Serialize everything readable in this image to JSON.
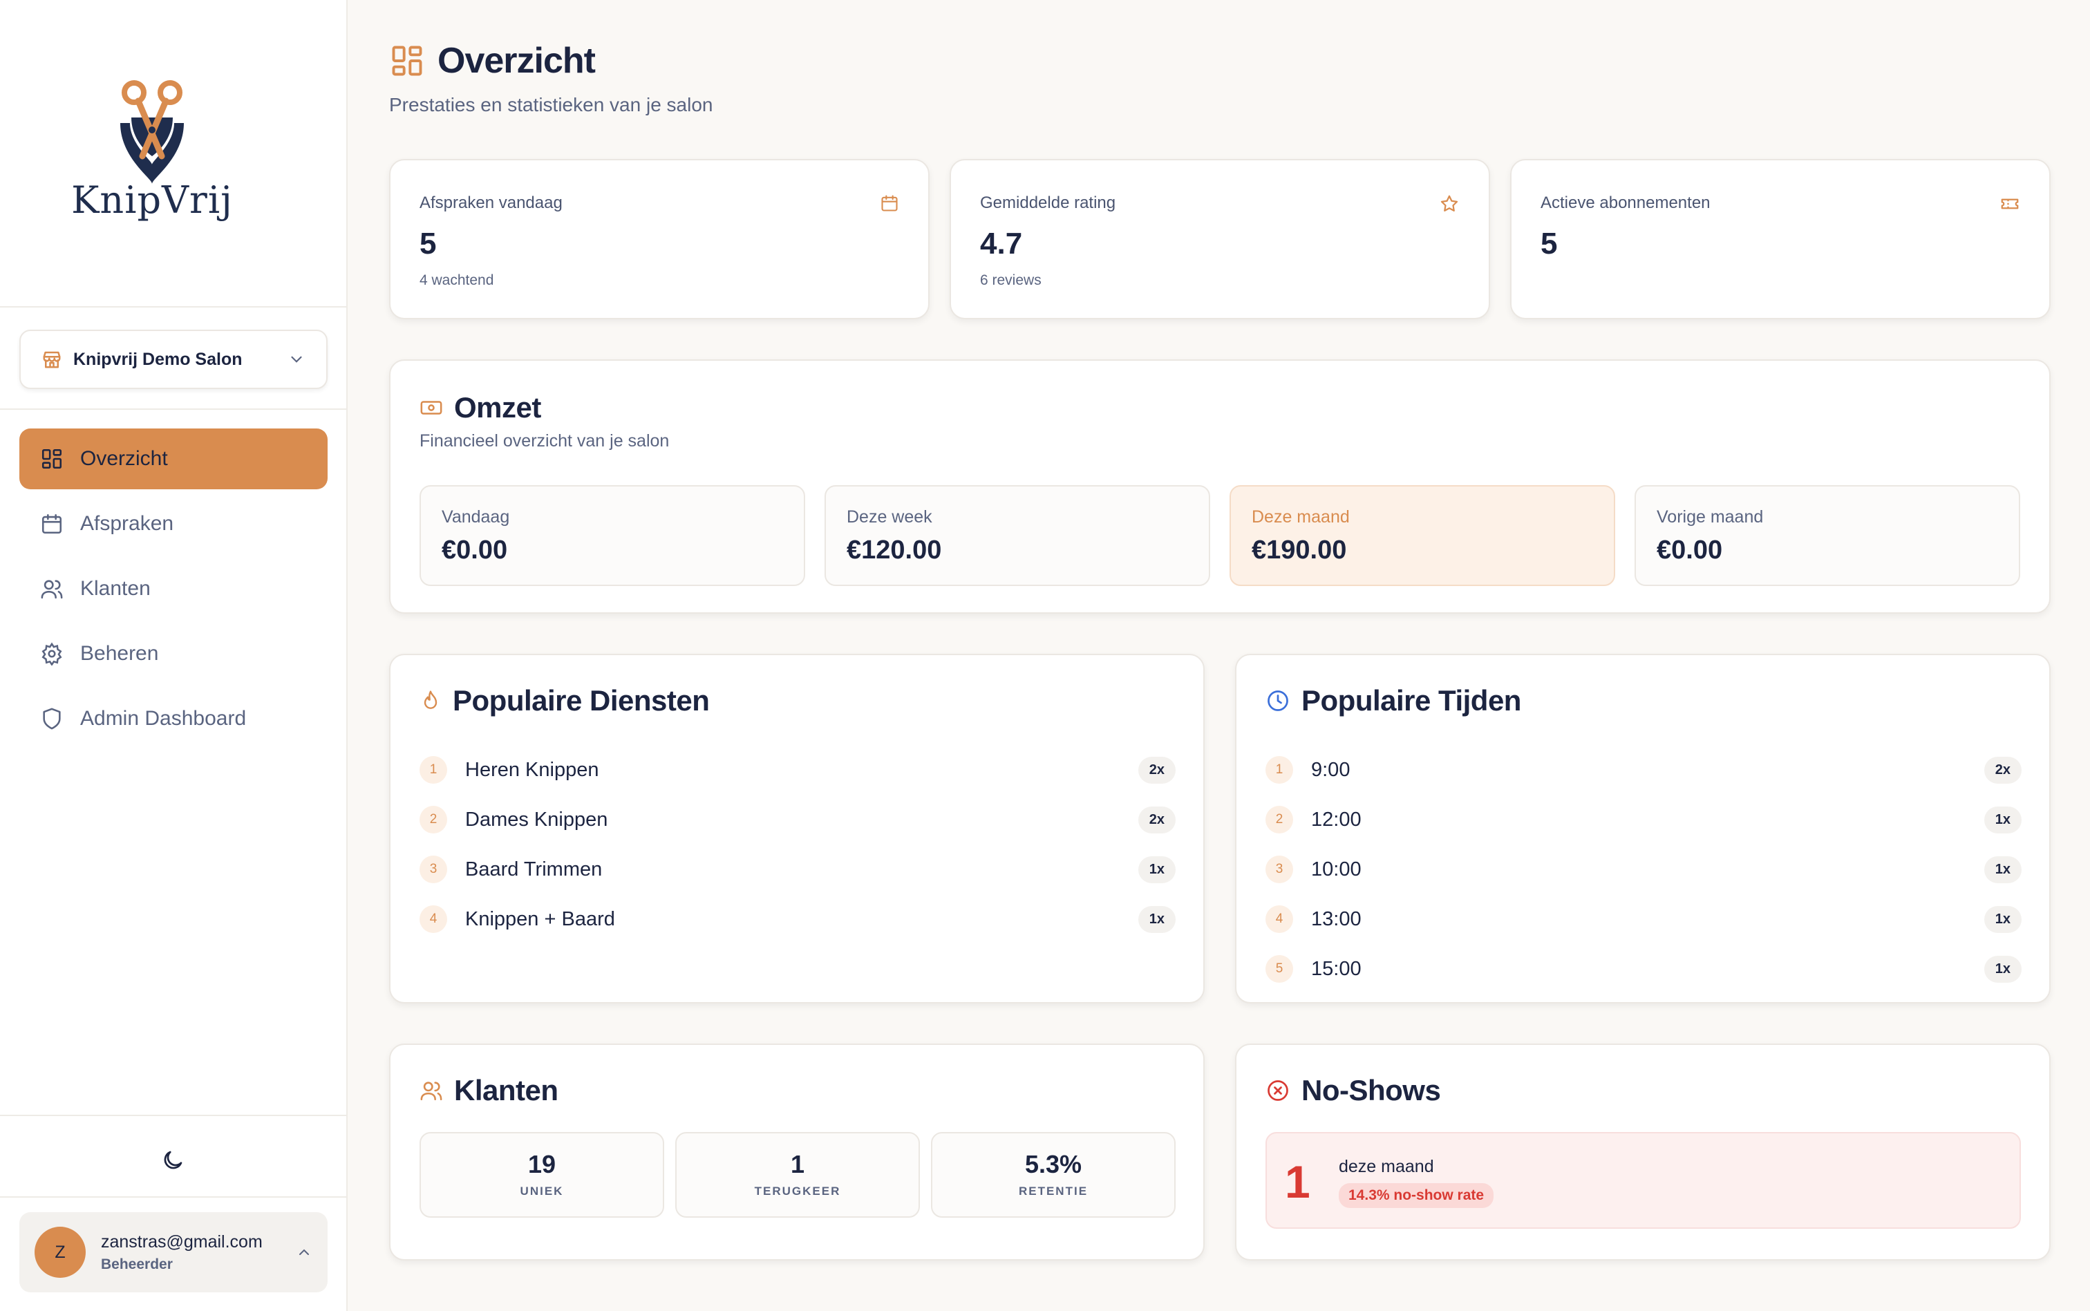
{
  "brand": {
    "name": "KnipVrij",
    "accent": "#d98c4f"
  },
  "salon_selector": {
    "value": "Knipvrij Demo Salon"
  },
  "nav": {
    "items": [
      {
        "label": "Overzicht",
        "icon": "grid-icon",
        "active": true
      },
      {
        "label": "Afspraken",
        "icon": "calendar-icon"
      },
      {
        "label": "Klanten",
        "icon": "users-icon"
      },
      {
        "label": "Beheren",
        "icon": "gear-icon"
      },
      {
        "label": "Admin Dashboard",
        "icon": "shield-icon"
      }
    ]
  },
  "user": {
    "initial": "Z",
    "email": "zanstras@gmail.com",
    "role": "Beheerder"
  },
  "page": {
    "title": "Overzicht",
    "subtitle": "Prestaties en statistieken van je salon"
  },
  "stats": [
    {
      "label": "Afspraken vandaag",
      "value": "5",
      "sub": "4 wachtend",
      "icon": "calendar-icon"
    },
    {
      "label": "Gemiddelde rating",
      "value": "4.7",
      "sub": "6 reviews",
      "icon": "star-icon"
    },
    {
      "label": "Actieve abonnementen",
      "value": "5",
      "sub": "",
      "icon": "ticket-icon"
    }
  ],
  "revenue": {
    "title": "Omzet",
    "subtitle": "Financieel overzicht van je salon",
    "periods": [
      {
        "label": "Vandaag",
        "value": "€0.00"
      },
      {
        "label": "Deze week",
        "value": "€120.00"
      },
      {
        "label": "Deze maand",
        "value": "€190.00",
        "highlight": true
      },
      {
        "label": "Vorige maand",
        "value": "€0.00"
      }
    ]
  },
  "popular_services": {
    "title": "Populaire Diensten",
    "items": [
      {
        "rank": "1",
        "label": "Heren Knippen",
        "count": "2x"
      },
      {
        "rank": "2",
        "label": "Dames Knippen",
        "count": "2x"
      },
      {
        "rank": "3",
        "label": "Baard Trimmen",
        "count": "1x"
      },
      {
        "rank": "4",
        "label": "Knippen + Baard",
        "count": "1x"
      }
    ]
  },
  "popular_times": {
    "title": "Populaire Tijden",
    "items": [
      {
        "rank": "1",
        "label": "9:00",
        "count": "2x"
      },
      {
        "rank": "2",
        "label": "12:00",
        "count": "1x"
      },
      {
        "rank": "3",
        "label": "10:00",
        "count": "1x"
      },
      {
        "rank": "4",
        "label": "13:00",
        "count": "1x"
      },
      {
        "rank": "5",
        "label": "15:00",
        "count": "1x"
      }
    ]
  },
  "clients": {
    "title": "Klanten",
    "boxes": [
      {
        "value": "19",
        "label": "UNIEK"
      },
      {
        "value": "1",
        "label": "TERUGKEER"
      },
      {
        "value": "5.3%",
        "label": "RETENTIE"
      }
    ]
  },
  "noshows": {
    "title": "No-Shows",
    "count": "1",
    "label": "deze maand",
    "rate": "14.3% no-show rate",
    "color": "#d93a33"
  }
}
